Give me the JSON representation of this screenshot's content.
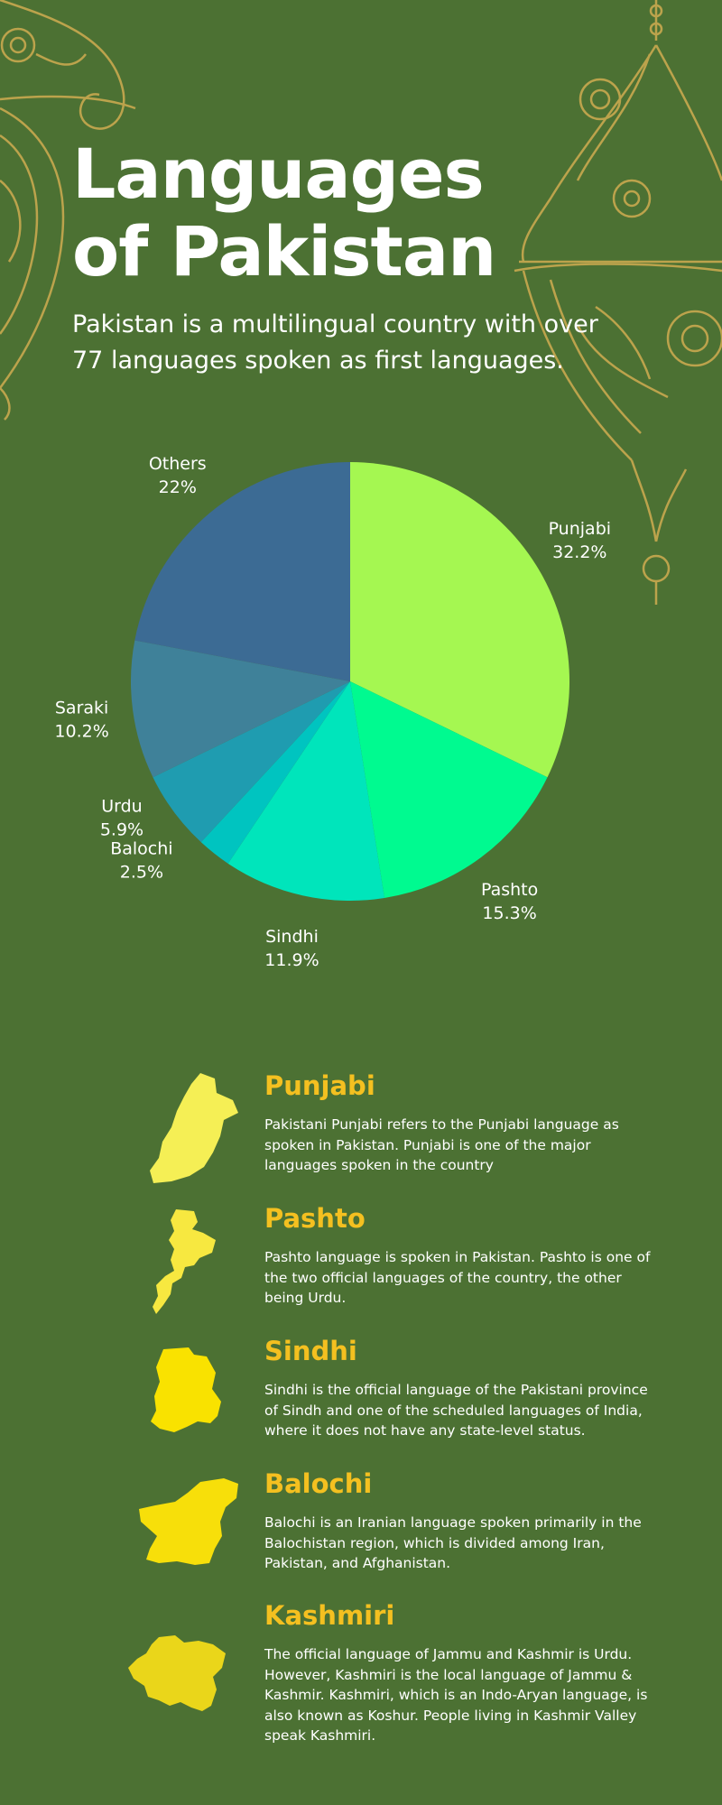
{
  "header": {
    "title": "Languages of Pakistan",
    "subtitle": "Pakistan is a multilingual country with over 77 languages spoken as first languages."
  },
  "chart_data": {
    "type": "pie",
    "title": "",
    "slices": [
      {
        "label": "Punjabi",
        "value": 32.2,
        "display": "32.2%",
        "color": "#a5f751"
      },
      {
        "label": "Pashto",
        "value": 15.3,
        "display": "15.3%",
        "color": "#00fa90"
      },
      {
        "label": "Sindhi",
        "value": 11.9,
        "display": "11.9%",
        "color": "#00e5bb"
      },
      {
        "label": "Balochi",
        "value": 2.5,
        "display": "2.5%",
        "color": "#00c4c0"
      },
      {
        "label": "Urdu",
        "value": 5.9,
        "display": "5.9%",
        "color": "#1f9cb0"
      },
      {
        "label": "Saraki",
        "value": 10.2,
        "display": "10.2%",
        "color": "#3f8199"
      },
      {
        "label": "Others",
        "value": 22,
        "display": "22%",
        "color": "#3c6b94"
      }
    ]
  },
  "languages": [
    {
      "name": "Punjabi",
      "icon": "punjab-map-icon",
      "color": "#f5ef55",
      "description": "Pakistani Punjabi refers to the Punjabi language as spoken in Pakistan. Punjabi is one of the major languages spoken in the country"
    },
    {
      "name": "Pashto",
      "icon": "khyber-pakhtunkhwa-map-icon",
      "color": "#f7e840",
      "description": "Pashto language is spoken in Pakistan. Pashto is one of the two official languages of the country, the other being Urdu."
    },
    {
      "name": "Sindhi",
      "icon": "sindh-map-icon",
      "color": "#f9e200",
      "description": "Sindhi is the official language of the Pakistani province of Sindh and one of the scheduled languages of India, where it does not have any state-level status."
    },
    {
      "name": "Balochi",
      "icon": "balochistan-map-icon",
      "color": "#f7df0a",
      "description": "Balochi is an Iranian language spoken primarily in the Balochistan region, which is divided among Iran, Pakistan, and Afghanistan."
    },
    {
      "name": "Kashmiri",
      "icon": "kashmir-map-icon",
      "color": "#ead61a",
      "description": "The official language of Jammu and Kashmir is Urdu. However, Kashmiri is the local language of Jammu & Kashmir. Kashmiri, which is an Indo-Aryan language, is also known as Koshur. People living in Kashmir Valley speak Kashmiri."
    }
  ]
}
